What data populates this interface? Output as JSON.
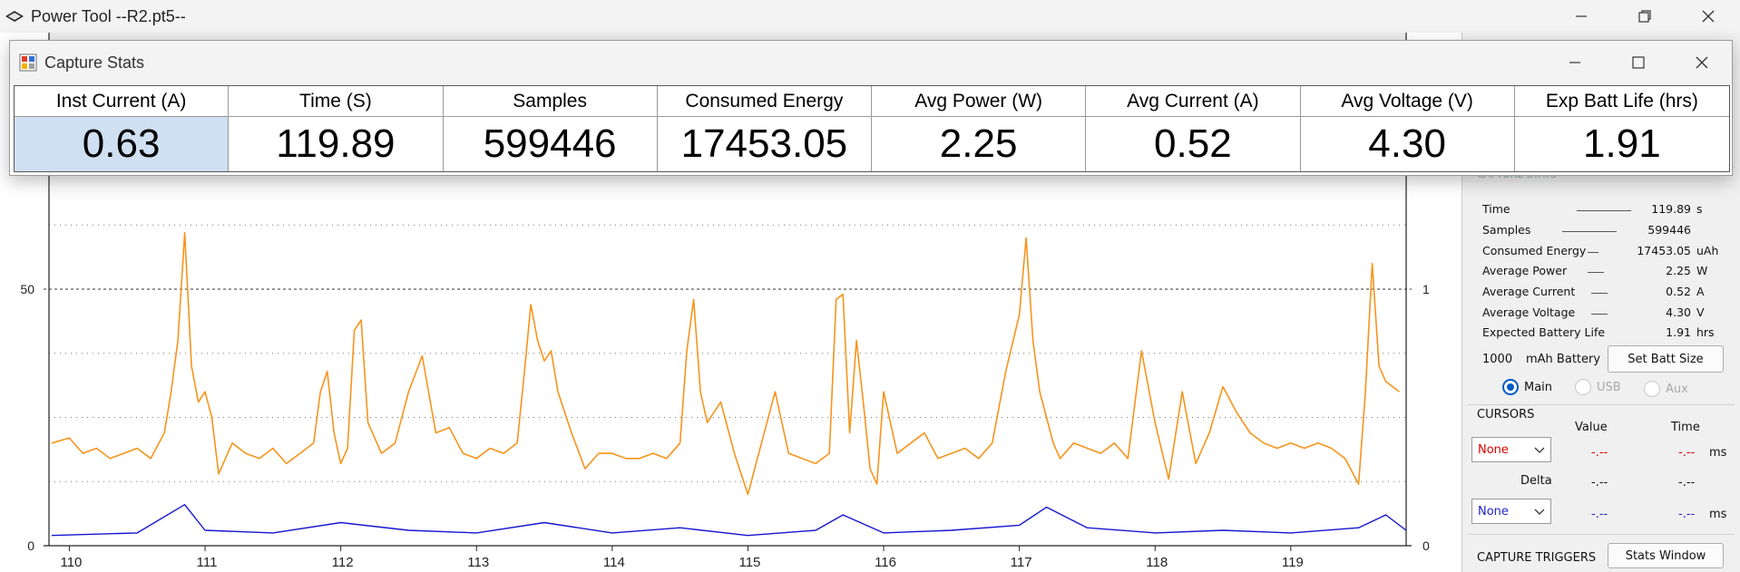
{
  "window": {
    "title": "Power Tool --R2.pt5--"
  },
  "stats_window": {
    "title": "Capture Stats",
    "headers": [
      "Inst Current (A)",
      "Time (S)",
      "Samples",
      "Consumed Energy",
      "Avg Power (W)",
      "Avg Current (A)",
      "Avg Voltage (V)",
      "Exp Batt Life (hrs)"
    ],
    "values": [
      "0.63",
      "119.89",
      "599446",
      "17453.05",
      "2.25",
      "0.52",
      "4.30",
      "1.91"
    ]
  },
  "right_panel": {
    "section_partial_label": "CAPTURE STATS",
    "stats": [
      {
        "label": "Time",
        "value": "119.89",
        "unit": "s"
      },
      {
        "label": "Samples",
        "value": "599446",
        "unit": ""
      },
      {
        "label": "Consumed Energy",
        "value": "17453.05",
        "unit": "uAh"
      },
      {
        "label": "Average Power",
        "value": "2.25",
        "unit": "W"
      },
      {
        "label": "Average Current",
        "value": "0.52",
        "unit": "A"
      },
      {
        "label": "Average Voltage",
        "value": "4.30",
        "unit": "V"
      },
      {
        "label": "Expected Battery Life",
        "value": "1.91",
        "unit": "hrs"
      }
    ],
    "battery_value": "1000",
    "battery_label": "mAh Battery",
    "set_batt_button": "Set Batt Size",
    "radios": [
      {
        "label": "Main",
        "selected": true
      },
      {
        "label": "USB",
        "selected": false
      },
      {
        "label": "Aux",
        "selected": false
      }
    ],
    "cursors": {
      "title": "CURSORS",
      "value_header": "Value",
      "time_header": "Time",
      "select1": "None",
      "select2": "None",
      "row1_value": "-.--",
      "row1_time": "-.--",
      "row1_unit": "ms",
      "delta_label": "Delta",
      "delta_value": "-.--",
      "delta_time": "-.--",
      "row2_value": "-.--",
      "row2_time": "-.--",
      "row2_unit": "ms"
    },
    "triggers_title": "CAPTURE TRIGGERS",
    "stats_window_button": "Stats Window"
  },
  "chart_data": {
    "type": "line",
    "x_ticks": [
      "110",
      "111",
      "112",
      "113",
      "114",
      "115",
      "116",
      "117",
      "118",
      "119"
    ],
    "xlim": [
      109.85,
      119.85
    ],
    "y_left_ticks": [
      "50",
      "0"
    ],
    "y_left_lim": [
      0,
      100
    ],
    "y_right_ticks": [
      "1",
      "0"
    ],
    "y_right_lim": [
      0,
      2
    ],
    "grid": "dotted horizontal",
    "colors": {
      "current": "#f7941d",
      "voltage": "#1515d0"
    },
    "series": [
      {
        "color": "#f7941d",
        "x": [
          109.87,
          110.0,
          110.1,
          110.2,
          110.3,
          110.4,
          110.5,
          110.6,
          110.7,
          110.75,
          110.8,
          110.85,
          110.9,
          110.95,
          111.0,
          111.05,
          111.1,
          111.2,
          111.3,
          111.4,
          111.5,
          111.6,
          111.7,
          111.8,
          111.85,
          111.9,
          111.95,
          112.0,
          112.05,
          112.1,
          112.15,
          112.2,
          112.3,
          112.4,
          112.5,
          112.6,
          112.7,
          112.8,
          112.9,
          113.0,
          113.1,
          113.2,
          113.3,
          113.35,
          113.4,
          113.45,
          113.5,
          113.55,
          113.6,
          113.7,
          113.8,
          113.9,
          114.0,
          114.1,
          114.2,
          114.3,
          114.4,
          114.5,
          114.55,
          114.6,
          114.65,
          114.7,
          114.75,
          114.8,
          114.9,
          115.0,
          115.1,
          115.2,
          115.3,
          115.4,
          115.5,
          115.6,
          115.65,
          115.7,
          115.75,
          115.8,
          115.85,
          115.9,
          115.95,
          116.0,
          116.1,
          116.2,
          116.3,
          116.4,
          116.5,
          116.6,
          116.7,
          116.8,
          116.9,
          117.0,
          117.05,
          117.1,
          117.15,
          117.2,
          117.25,
          117.3,
          117.4,
          117.5,
          117.6,
          117.7,
          117.8,
          117.9,
          118.0,
          118.1,
          118.2,
          118.3,
          118.4,
          118.5,
          118.6,
          118.7,
          118.8,
          118.9,
          119.0,
          119.1,
          119.2,
          119.3,
          119.4,
          119.5,
          119.55,
          119.6,
          119.65,
          119.7,
          119.8
        ],
        "y": [
          20,
          21,
          18,
          19,
          17,
          18,
          19,
          17,
          22,
          30,
          40,
          61,
          35,
          28,
          30,
          25,
          14,
          20,
          18,
          17,
          19,
          16,
          18,
          20,
          30,
          34,
          22,
          16,
          19,
          42,
          44,
          24,
          18,
          20,
          30,
          37,
          22,
          23,
          18,
          17,
          19,
          18,
          20,
          33,
          47,
          40,
          36,
          38,
          30,
          22,
          15,
          18,
          18,
          17,
          17,
          18,
          17,
          20,
          38,
          48,
          30,
          24,
          26,
          28,
          18,
          10,
          20,
          30,
          18,
          17,
          16,
          18,
          48,
          49,
          22,
          40,
          28,
          15,
          12,
          30,
          18,
          20,
          22,
          17,
          18,
          19,
          17,
          20,
          34,
          45,
          60,
          40,
          30,
          25,
          20,
          17,
          20,
          19,
          18,
          20,
          17,
          38,
          24,
          13,
          30,
          16,
          22,
          31,
          26,
          22,
          20,
          19,
          20,
          19,
          20,
          19,
          17,
          12,
          30,
          55,
          35,
          32,
          30
        ]
      },
      {
        "color": "#1515d0",
        "x": [
          109.87,
          110.5,
          110.85,
          111.0,
          111.5,
          112.0,
          112.5,
          113.0,
          113.5,
          114.0,
          114.5,
          115.0,
          115.5,
          115.7,
          116.0,
          116.5,
          117.0,
          117.2,
          117.5,
          118.0,
          118.5,
          119.0,
          119.5,
          119.7,
          119.85
        ],
        "y": [
          0.04,
          0.05,
          0.16,
          0.06,
          0.05,
          0.09,
          0.06,
          0.05,
          0.09,
          0.05,
          0.07,
          0.04,
          0.06,
          0.12,
          0.05,
          0.06,
          0.08,
          0.15,
          0.07,
          0.05,
          0.06,
          0.05,
          0.07,
          0.12,
          0.06
        ]
      }
    ]
  }
}
